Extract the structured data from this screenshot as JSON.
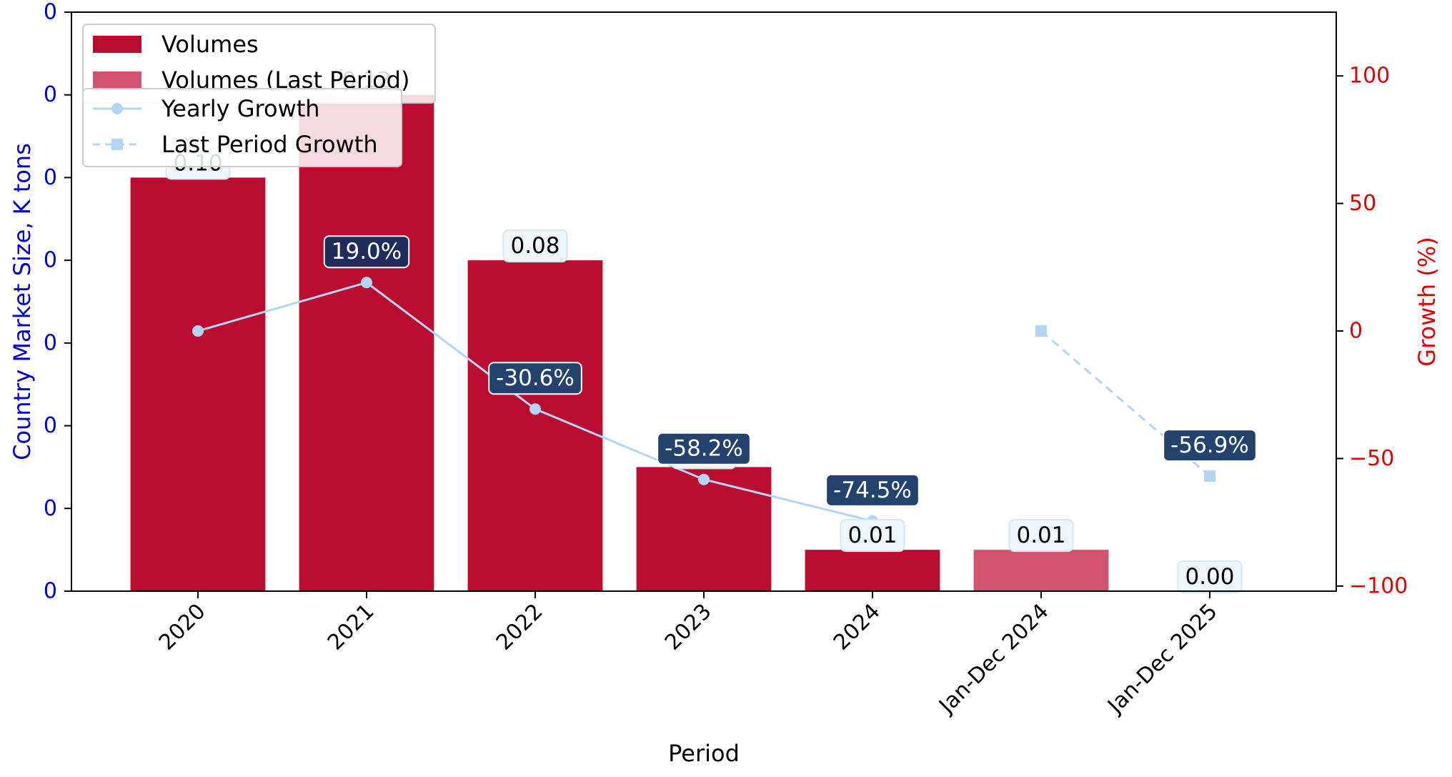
{
  "chart_data": {
    "type": "bar",
    "categories": [
      "2020",
      "2021",
      "2022",
      "2023",
      "2024",
      "Jan-Dec 2024",
      "Jan-Dec 2025"
    ],
    "bar_series": [
      {
        "name": "Volumes",
        "color": "#ba0c2f",
        "values": [
          0.1,
          0.12,
          0.08,
          0.03,
          0.01,
          null,
          null
        ],
        "labels": [
          "0.10",
          "0.12",
          "0.08",
          "0.03",
          "0.01",
          "",
          ""
        ]
      },
      {
        "name": "Volumes (Last Period)",
        "color": "#d1536e",
        "values": [
          null,
          null,
          null,
          null,
          null,
          0.01,
          0.0
        ],
        "labels": [
          "",
          "",
          "",
          "",
          "",
          "0.01",
          "0.00"
        ]
      }
    ],
    "line_series": [
      {
        "name": "Yearly Growth",
        "style": "solid",
        "marker": "circle",
        "color": "#b3d4f5",
        "values": [
          0,
          19.0,
          -30.6,
          -58.2,
          -74.5,
          null,
          null
        ],
        "labels": [
          "",
          "19.0%",
          "-30.6%",
          "-58.2%",
          "-74.5%",
          "",
          ""
        ]
      },
      {
        "name": "Last Period Growth",
        "style": "dashed",
        "marker": "square",
        "color": "#b3d4f5",
        "values": [
          null,
          null,
          null,
          null,
          null,
          0,
          -56.9
        ],
        "labels": [
          "",
          "",
          "",
          "",
          "",
          "",
          "-56.9%"
        ]
      }
    ],
    "xlabel": "Period",
    "ylabel_left": "Country Market Size, K tons",
    "ylabel_right": "Growth (%)",
    "ylim_left": [
      0,
      0.14
    ],
    "ylim_right": [
      -102,
      125
    ],
    "left_ticks": [
      0,
      0.02,
      0.04,
      0.06,
      0.08,
      0.1,
      0.12,
      0.14
    ],
    "left_tick_labels": [
      "0",
      "0",
      "0",
      "0",
      "0",
      "0",
      "0",
      "0"
    ],
    "right_ticks": [
      -100,
      -50,
      0,
      50,
      100
    ],
    "right_tick_labels": [
      "−100",
      "−50",
      "0",
      "50",
      "100"
    ],
    "left_axis_color": "#0000cc",
    "right_axis_color": "#dd0000",
    "growth_label_colors": {
      "positive": "#1f2d5c",
      "negative": "#23426e"
    },
    "value_label_bg": "#eef6fc",
    "grid": false,
    "legend_placement": "top-left"
  }
}
